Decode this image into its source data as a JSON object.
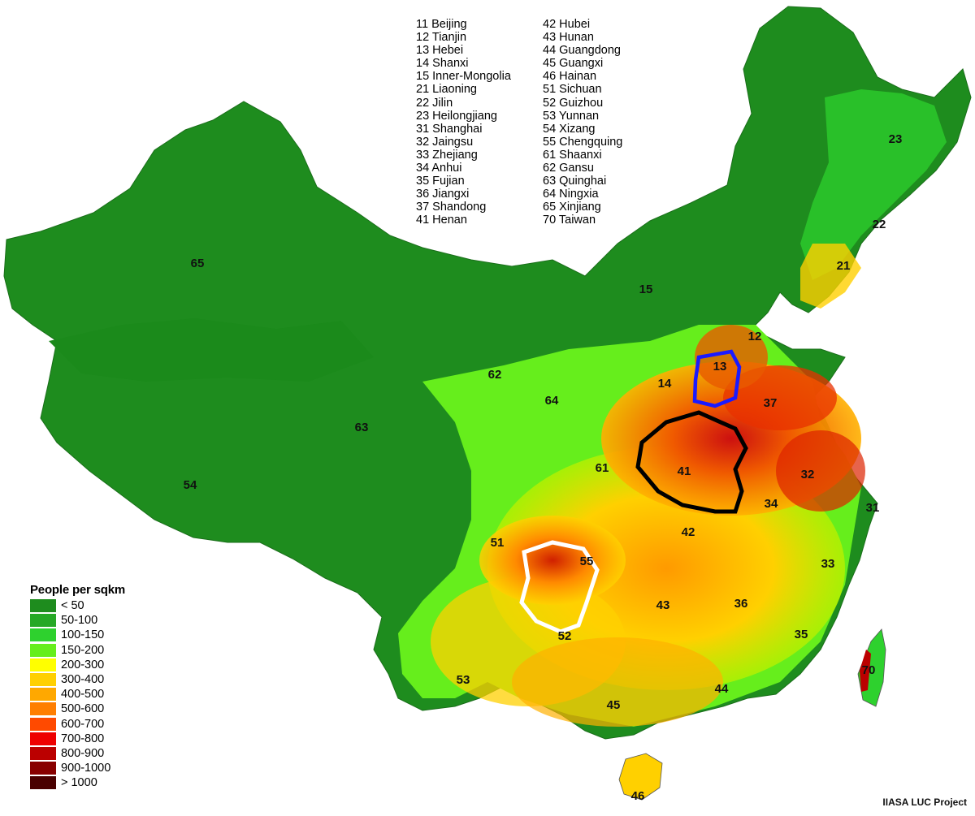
{
  "map": {
    "province_codes": [
      {
        "code": "11",
        "name": "Beijing"
      },
      {
        "code": "12",
        "name": "Tianjin"
      },
      {
        "code": "13",
        "name": "Hebei"
      },
      {
        "code": "14",
        "name": "Shanxi"
      },
      {
        "code": "15",
        "name": "Inner-Mongolia"
      },
      {
        "code": "21",
        "name": "Liaoning"
      },
      {
        "code": "22",
        "name": "Jilin"
      },
      {
        "code": "23",
        "name": "Heilongjiang"
      },
      {
        "code": "31",
        "name": "Shanghai"
      },
      {
        "code": "32",
        "name": "Jaingsu"
      },
      {
        "code": "33",
        "name": "Zhejiang"
      },
      {
        "code": "34",
        "name": "Anhui"
      },
      {
        "code": "35",
        "name": "Fujian"
      },
      {
        "code": "36",
        "name": "Jiangxi"
      },
      {
        "code": "37",
        "name": "Shandong"
      },
      {
        "code": "41",
        "name": "Henan"
      },
      {
        "code": "42",
        "name": "Hubei"
      },
      {
        "code": "43",
        "name": "Hunan"
      },
      {
        "code": "44",
        "name": "Guangdong"
      },
      {
        "code": "45",
        "name": "Guangxi"
      },
      {
        "code": "46",
        "name": "Hainan"
      },
      {
        "code": "51",
        "name": "Sichuan"
      },
      {
        "code": "52",
        "name": "Guizhou"
      },
      {
        "code": "53",
        "name": "Yunnan"
      },
      {
        "code": "54",
        "name": "Xizang"
      },
      {
        "code": "55",
        "name": "Chengquing"
      },
      {
        "code": "61",
        "name": "Shaanxi"
      },
      {
        "code": "62",
        "name": "Gansu"
      },
      {
        "code": "63",
        "name": "Quinghai"
      },
      {
        "code": "64",
        "name": "Ningxia"
      },
      {
        "code": "65",
        "name": "Xinjiang"
      },
      {
        "code": "70",
        "name": "Taiwan"
      }
    ],
    "map_labels": [
      "65",
      "15",
      "23",
      "22",
      "21",
      "12",
      "13",
      "14",
      "37",
      "62",
      "64",
      "63",
      "61",
      "41",
      "32",
      "34",
      "31",
      "42",
      "51",
      "55",
      "33",
      "43",
      "36",
      "54",
      "52",
      "53",
      "35",
      "45",
      "44",
      "70",
      "46"
    ],
    "legend": {
      "title": "People per sqkm",
      "classes": [
        {
          "label": "< 50",
          "color": "#1e8c1e"
        },
        {
          "label": "50-100",
          "color": "#26a826"
        },
        {
          "label": "100-150",
          "color": "#2ed12e"
        },
        {
          "label": "150-200",
          "color": "#66ee1c"
        },
        {
          "label": "200-300",
          "color": "#ffff00"
        },
        {
          "label": "300-400",
          "color": "#ffd000"
        },
        {
          "label": "400-500",
          "color": "#ffa800"
        },
        {
          "label": "500-600",
          "color": "#ff7e00"
        },
        {
          "label": "600-700",
          "color": "#ff4a00"
        },
        {
          "label": "700-800",
          "color": "#ee0000"
        },
        {
          "label": "800-900",
          "color": "#bb0000"
        },
        {
          "label": "900-1000",
          "color": "#880000"
        },
        {
          "label": "> 1000",
          "color": "#4a0000"
        }
      ]
    },
    "annotation_outlines": [
      {
        "color": "#1a1aff"
      },
      {
        "color": "#000000"
      },
      {
        "color": "#ffffff"
      }
    ],
    "credit": "IIASA LUC Project"
  }
}
